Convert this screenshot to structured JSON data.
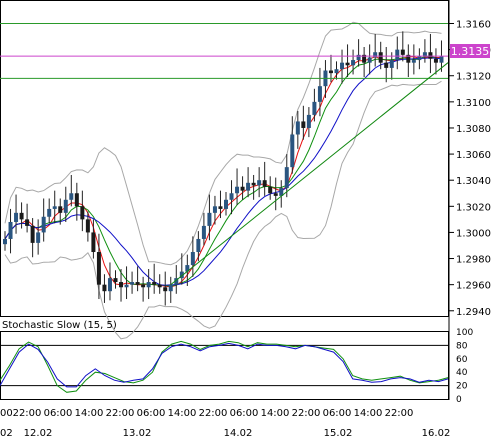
{
  "indicator": {
    "label": "Stochastic Slow (15, 5)",
    "levels": [
      "100",
      "80",
      "60",
      "40",
      "20",
      "0"
    ]
  },
  "price_axis": {
    "ticks": [
      "1.3160",
      "1.3140",
      "1.3120",
      "1.3100",
      "1.3080",
      "1.3060",
      "1.3040",
      "1.3020",
      "1.3000",
      "1.2980",
      "1.2960",
      "1.2940"
    ],
    "current_price": "1.3135",
    "current_price_color": "#cc44cc"
  },
  "time_axis": {
    "hours": [
      "00",
      "22:00",
      "06:00",
      "14:00",
      "22:00",
      "06:00",
      "14:00",
      "22:00",
      "06:00",
      "14:00",
      "22:00",
      "06:00",
      "14:00",
      "22:00"
    ],
    "dates": [
      "02",
      "12.02",
      "13.02",
      "14.02",
      "15.02",
      "16.02"
    ]
  },
  "colors": {
    "up_candle": "#2a5580",
    "down_candle": "#1a1a1a",
    "bollinger": "#a8a8a8",
    "ma_red": "#e81010",
    "ma_green": "#109010",
    "ma_blue": "#1010c8",
    "trend_line": "#108810",
    "horizontal_line": "#2a9a2a",
    "stoch_k": "#1010c8",
    "stoch_d": "#109010"
  },
  "chart_data": {
    "type": "line",
    "title": "",
    "ylim": [
      1.2936,
      1.3178
    ],
    "yticks": [
      1.316,
      1.314,
      1.312,
      1.31,
      1.308,
      1.306,
      1.304,
      1.302,
      1.3,
      1.298,
      1.296,
      1.294
    ],
    "horizontal_lines": [
      1.316,
      1.3135,
      1.3118
    ],
    "trend_line_from": [
      1.296,
      1.313
    ],
    "candles_close": [
      1.2995,
      1.3008,
      1.3015,
      1.301,
      1.3005,
      1.2992,
      1.3,
      1.3012,
      1.3018,
      1.302,
      1.3015,
      1.3025,
      1.303,
      1.302,
      1.301,
      1.3,
      1.2985,
      1.296,
      1.2955,
      1.2965,
      1.2962,
      1.2958,
      1.296,
      1.2962,
      1.296,
      1.2958,
      1.2962,
      1.296,
      1.2958,
      1.2955,
      1.296,
      1.2965,
      1.297,
      1.2975,
      1.2985,
      1.2995,
      1.3005,
      1.3015,
      1.302,
      1.3018,
      1.3025,
      1.303,
      1.3035,
      1.3032,
      1.3038,
      1.3036,
      1.304,
      1.3035,
      1.303,
      1.3028,
      1.3034,
      1.305,
      1.3075,
      1.3085,
      1.308,
      1.309,
      1.31,
      1.3112,
      1.3124,
      1.3122,
      1.3125,
      1.313,
      1.3128,
      1.3132,
      1.3136,
      1.313,
      1.3134,
      1.3138,
      1.313,
      1.3126,
      1.3132,
      1.314,
      1.3136,
      1.313,
      1.3132,
      1.3135,
      1.3138,
      1.3133,
      1.313,
      1.3135
    ],
    "stochastic": {
      "ylim": [
        0,
        100
      ],
      "k": [
        20,
        45,
        70,
        82,
        74,
        55,
        30,
        18,
        18,
        35,
        45,
        35,
        28,
        25,
        28,
        30,
        45,
        68,
        78,
        82,
        78,
        72,
        78,
        80,
        83,
        80,
        75,
        82,
        80,
        80,
        78,
        75,
        80,
        78,
        74,
        70,
        56,
        30,
        28,
        25,
        26,
        30,
        32,
        30,
        25,
        28,
        26,
        30
      ],
      "d": [
        28,
        50,
        75,
        85,
        78,
        50,
        20,
        10,
        12,
        28,
        40,
        38,
        32,
        26,
        24,
        28,
        40,
        70,
        82,
        86,
        82,
        74,
        80,
        82,
        86,
        84,
        78,
        84,
        82,
        82,
        80,
        78,
        80,
        78,
        76,
        74,
        60,
        35,
        30,
        28,
        30,
        32,
        34,
        28,
        24,
        26,
        28,
        32
      ]
    }
  }
}
